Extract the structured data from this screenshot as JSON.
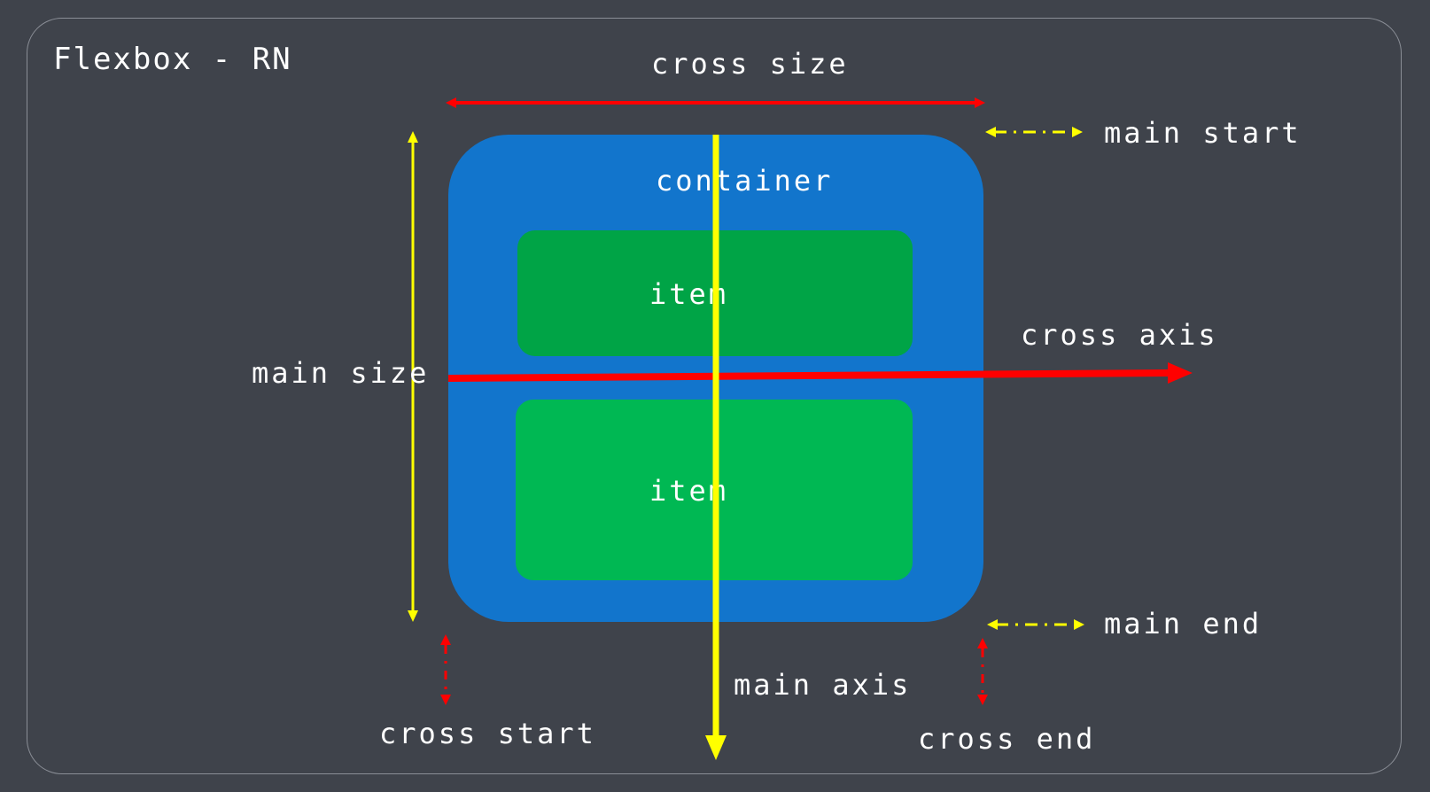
{
  "title": "Flexbox - RN",
  "labels": {
    "cross_size": "cross size",
    "main_start": "main start",
    "main_end": "main end",
    "main_size": "main size",
    "cross_axis": "cross axis",
    "main_axis": "main axis",
    "cross_start": "cross start",
    "cross_end": "cross end"
  },
  "container": {
    "label": "container"
  },
  "items": [
    {
      "label": "item"
    },
    {
      "label": "item"
    }
  ],
  "colors": {
    "background": "#3f434b",
    "container": "#1275cc",
    "item_1": "#00a446",
    "item_2": "#00b853",
    "main_axis": "#ffff00",
    "cross_axis": "#ff0000",
    "text": "#ffffff"
  }
}
